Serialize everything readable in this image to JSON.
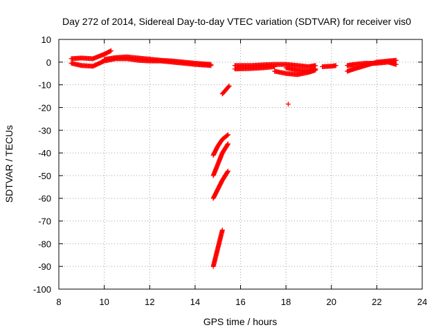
{
  "chart_data": {
    "type": "scatter",
    "title": "Day 272 of 2014, Sidereal Day-to-day VTEC variation (SDTVAR) for receiver vis0",
    "xlabel": "GPS time / hours",
    "ylabel": "SDTVAR / TECUs",
    "xlim": [
      8,
      24
    ],
    "ylim": [
      -100,
      10
    ],
    "xticks": [
      8,
      10,
      12,
      14,
      16,
      18,
      20,
      22,
      24
    ],
    "yticks": [
      10,
      0,
      -10,
      -20,
      -30,
      -40,
      -50,
      -60,
      -70,
      -80,
      -90,
      -100
    ],
    "grid": true,
    "legend": "none",
    "marker": "plus",
    "color": "#ff0000",
    "segments": [
      {
        "x": [
          8.55,
          9.0,
          9.5,
          10.0,
          10.3
        ],
        "y": [
          1.5,
          1.8,
          1.5,
          3.5,
          5.0
        ]
      },
      {
        "x": [
          8.55,
          9.0,
          9.5,
          10.0,
          10.5,
          11.0,
          11.5,
          12.0,
          12.5,
          13.0,
          13.5,
          14.0,
          14.7
        ],
        "y": [
          -0.5,
          -1.5,
          -1.8,
          0.5,
          1.5,
          1.5,
          0.8,
          0.5,
          0.5,
          0.0,
          -0.5,
          -1.0,
          -1.5
        ]
      },
      {
        "x": [
          10.0,
          10.5,
          11.0,
          11.5,
          12.0,
          12.5,
          13.0,
          13.5,
          14.0,
          14.7
        ],
        "y": [
          1.2,
          2.0,
          2.3,
          1.8,
          1.3,
          0.8,
          0.5,
          0.0,
          -0.5,
          -1.0
        ]
      },
      {
        "x": [
          15.2,
          15.5
        ],
        "y": [
          -14.0,
          -10.5
        ]
      },
      {
        "x": [
          14.8,
          15.0,
          15.2,
          15.45
        ],
        "y": [
          -41.0,
          -37.0,
          -34.0,
          -32.0
        ]
      },
      {
        "x": [
          14.8,
          15.0,
          15.2,
          15.45
        ],
        "y": [
          -50.0,
          -45.0,
          -40.0,
          -36.0
        ]
      },
      {
        "x": [
          14.8,
          15.0,
          15.2,
          15.45
        ],
        "y": [
          -60.0,
          -56.0,
          -52.0,
          -48.0
        ]
      },
      {
        "x": [
          14.8,
          14.95,
          15.1,
          15.2
        ],
        "y": [
          -90.0,
          -84.0,
          -78.0,
          -74.0
        ]
      },
      {
        "x": [
          15.75,
          16.5,
          17.0,
          17.5,
          18.0,
          18.5,
          19.0,
          19.3
        ],
        "y": [
          -1.5,
          -1.5,
          -1.2,
          -1.0,
          -1.0,
          -1.5,
          -2.0,
          -1.5
        ]
      },
      {
        "x": [
          15.75,
          16.5,
          17.0,
          17.5
        ],
        "y": [
          -3.0,
          -2.8,
          -2.5,
          -2.0
        ]
      },
      {
        "x": [
          17.5,
          18.0,
          18.5,
          19.0,
          19.3
        ],
        "y": [
          -4.0,
          -5.0,
          -5.5,
          -4.5,
          -3.5
        ]
      },
      {
        "x": [
          18.0,
          18.5,
          19.0,
          19.3
        ],
        "y": [
          -2.5,
          -3.5,
          -4.0,
          -3.0
        ]
      },
      {
        "x": [
          19.6,
          20.0,
          20.2
        ],
        "y": [
          -2.0,
          -1.8,
          -1.5
        ]
      },
      {
        "x": [
          20.7,
          21.0,
          21.5,
          22.0,
          22.5,
          22.85
        ],
        "y": [
          -4.0,
          -3.0,
          -1.5,
          0.0,
          0.5,
          0.8
        ]
      },
      {
        "x": [
          20.7,
          21.0,
          21.5,
          22.0,
          22.5,
          22.85
        ],
        "y": [
          -1.5,
          -1.0,
          -0.5,
          -0.5,
          0.0,
          -1.0
        ]
      }
    ],
    "points": [
      {
        "x": 18.1,
        "y": -18.5
      }
    ]
  }
}
